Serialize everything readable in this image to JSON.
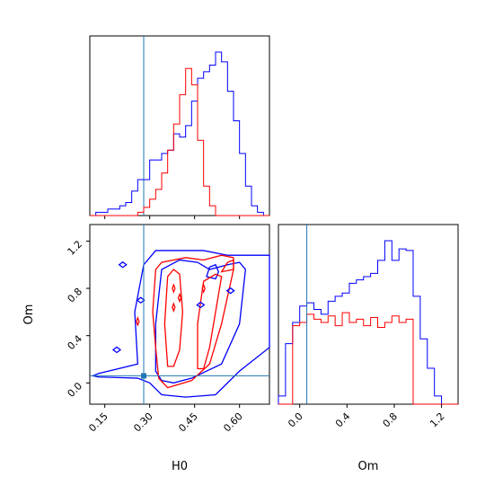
{
  "chart_data": {
    "type": "corner",
    "parameters": [
      "H0",
      "Om"
    ],
    "xlabel_h0": "H0",
    "xlabel_om": "Om",
    "ylabel_om": "Om",
    "colors": {
      "series_blue": "#0000ff",
      "series_red": "#ff0000",
      "truth": "#1f77b4"
    },
    "truth": {
      "H0": 0.28,
      "Om": 0.06
    },
    "h0_axis": {
      "range": [
        0.1,
        0.7
      ],
      "ticks": [
        "0.15",
        "0.30",
        "0.45",
        "0.60"
      ],
      "tick_values": [
        0.15,
        0.3,
        0.45,
        0.6
      ]
    },
    "om_axis": {
      "range": [
        -0.18,
        1.34
      ],
      "ticks": [
        "0.0",
        "0.4",
        "0.8",
        "1.2"
      ],
      "tick_values": [
        0.0,
        0.4,
        0.8,
        1.2
      ]
    },
    "hist_h0": {
      "bin_edges": [
        0.1,
        0.12,
        0.14,
        0.16,
        0.18,
        0.2,
        0.22,
        0.24,
        0.26,
        0.28,
        0.3,
        0.32,
        0.34,
        0.36,
        0.38,
        0.4,
        0.42,
        0.44,
        0.46,
        0.48,
        0.5,
        0.52,
        0.54,
        0.56,
        0.58,
        0.6,
        0.62,
        0.64,
        0.66,
        0.68,
        0.7
      ],
      "blue": [
        0.0,
        0.02,
        0.02,
        0.04,
        0.04,
        0.06,
        0.08,
        0.15,
        0.22,
        0.22,
        0.34,
        0.34,
        0.38,
        0.4,
        0.5,
        0.48,
        0.55,
        0.7,
        0.84,
        0.88,
        0.92,
        1.0,
        0.94,
        0.76,
        0.58,
        0.38,
        0.18,
        0.06,
        0.02,
        0.0
      ],
      "red": [
        0.0,
        0.0,
        0.0,
        0.0,
        0.0,
        0.0,
        0.0,
        0.0,
        0.02,
        0.05,
        0.1,
        0.16,
        0.26,
        0.4,
        0.56,
        0.74,
        0.9,
        0.8,
        0.46,
        0.18,
        0.06,
        0.0,
        0.0,
        0.0,
        0.0,
        0.0,
        0.0,
        0.0,
        0.0,
        0.0
      ]
    },
    "hist_om": {
      "bin_edges": [
        -0.18,
        -0.12,
        -0.06,
        0.0,
        0.06,
        0.12,
        0.18,
        0.24,
        0.3,
        0.36,
        0.42,
        0.48,
        0.54,
        0.6,
        0.66,
        0.72,
        0.78,
        0.84,
        0.9,
        0.96,
        1.02,
        1.08,
        1.14,
        1.2,
        1.26,
        1.34
      ],
      "blue": [
        0.05,
        0.37,
        0.5,
        0.6,
        0.62,
        0.58,
        0.55,
        0.63,
        0.66,
        0.68,
        0.74,
        0.76,
        0.78,
        0.8,
        0.88,
        1.0,
        0.88,
        0.95,
        0.94,
        0.66,
        0.4,
        0.22,
        0.05,
        0.0,
        0.0
      ],
      "red": [
        0.0,
        0.0,
        0.48,
        0.5,
        0.55,
        0.52,
        0.5,
        0.54,
        0.48,
        0.56,
        0.5,
        0.52,
        0.48,
        0.53,
        0.47,
        0.5,
        0.54,
        0.5,
        0.52,
        0.0,
        0.0,
        0.0,
        0.0,
        0.0,
        0.0
      ]
    },
    "contours_h0_om": {
      "blue": [
        [
          [
            0.11,
            0.06
          ],
          [
            0.13,
            0.08
          ],
          [
            0.26,
            0.16
          ],
          [
            0.25,
            0.6
          ],
          [
            0.28,
            1.0
          ],
          [
            0.32,
            1.12
          ],
          [
            0.48,
            1.12
          ],
          [
            0.56,
            1.08
          ],
          [
            0.66,
            1.08
          ],
          [
            0.7,
            1.08
          ],
          [
            0.7,
            0.3
          ],
          [
            0.6,
            0.1
          ],
          [
            0.52,
            -0.1
          ],
          [
            0.42,
            -0.12
          ],
          [
            0.34,
            -0.1
          ],
          [
            0.3,
            0.0
          ],
          [
            0.26,
            0.04
          ],
          [
            0.13,
            0.05
          ]
        ],
        [
          [
            0.32,
            0.1
          ],
          [
            0.32,
            0.5
          ],
          [
            0.34,
            0.96
          ],
          [
            0.4,
            1.04
          ],
          [
            0.46,
            1.02
          ],
          [
            0.5,
            0.96
          ],
          [
            0.56,
            1.0
          ],
          [
            0.6,
            1.02
          ],
          [
            0.62,
            0.96
          ],
          [
            0.6,
            0.5
          ],
          [
            0.54,
            0.16
          ],
          [
            0.44,
            0.04
          ],
          [
            0.38,
            0.0
          ],
          [
            0.34,
            0.02
          ]
        ],
        [
          [
            0.49,
            0.9
          ],
          [
            0.5,
            0.98
          ],
          [
            0.52,
            1.0
          ],
          [
            0.53,
            0.94
          ],
          [
            0.52,
            0.88
          ]
        ]
      ],
      "red": [
        [
          [
            0.33,
            0.04
          ],
          [
            0.32,
            0.3
          ],
          [
            0.31,
            0.6
          ],
          [
            0.32,
            0.96
          ],
          [
            0.34,
            1.02
          ],
          [
            0.42,
            1.06
          ],
          [
            0.48,
            1.04
          ],
          [
            0.54,
            1.08
          ],
          [
            0.58,
            1.06
          ],
          [
            0.58,
            0.96
          ],
          [
            0.54,
            0.5
          ],
          [
            0.5,
            0.16
          ],
          [
            0.44,
            0.02
          ],
          [
            0.36,
            -0.04
          ]
        ],
        [
          [
            0.36,
            0.14
          ],
          [
            0.35,
            0.5
          ],
          [
            0.36,
            0.9
          ],
          [
            0.38,
            0.96
          ],
          [
            0.4,
            0.92
          ],
          [
            0.41,
            0.6
          ],
          [
            0.4,
            0.28
          ],
          [
            0.38,
            0.14
          ]
        ],
        [
          [
            0.46,
            0.12
          ],
          [
            0.46,
            0.5
          ],
          [
            0.48,
            0.86
          ],
          [
            0.52,
            0.92
          ],
          [
            0.54,
            0.9
          ],
          [
            0.52,
            0.6
          ],
          [
            0.5,
            0.3
          ],
          [
            0.48,
            0.12
          ]
        ],
        [
          [
            0.54,
            0.94
          ],
          [
            0.56,
            1.02
          ],
          [
            0.58,
            1.04
          ],
          [
            0.58,
            0.96
          ]
        ]
      ],
      "blue_islands": [
        [
          0.21,
          1.0
        ],
        [
          0.19,
          0.28
        ],
        [
          0.27,
          0.7
        ],
        [
          0.47,
          0.66
        ],
        [
          0.57,
          0.78
        ]
      ],
      "red_islands": [
        [
          0.26,
          0.52
        ],
        [
          0.38,
          0.8
        ],
        [
          0.38,
          0.64
        ],
        [
          0.48,
          0.8
        ],
        [
          0.4,
          0.72
        ]
      ]
    }
  }
}
